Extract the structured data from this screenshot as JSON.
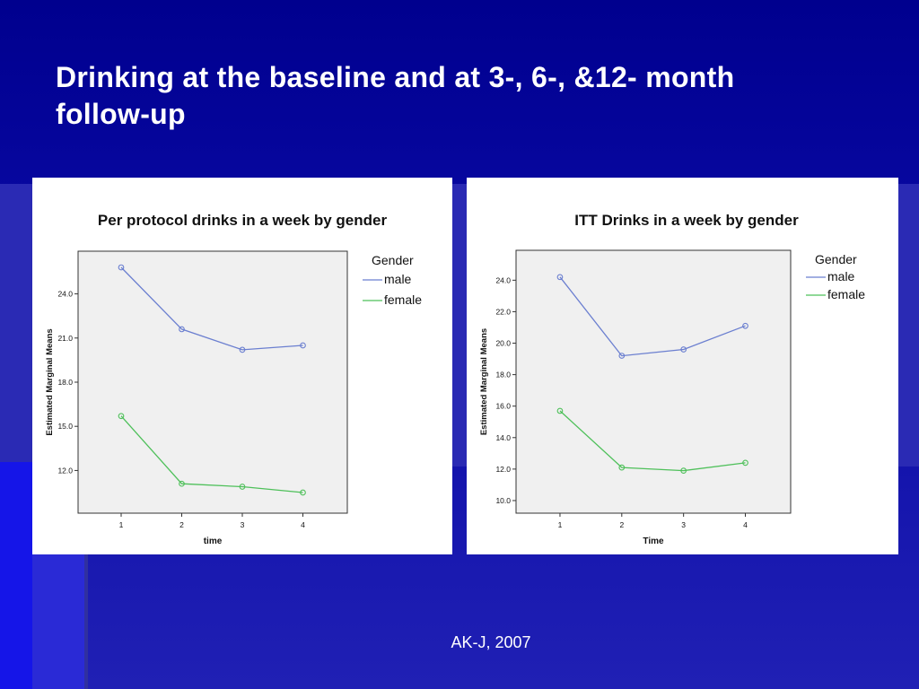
{
  "slide": {
    "title_line1": "Drinking at the baseline and at 3-, 6-, &12- month",
    "title_line2": "follow-up",
    "footer": "AK-J, 2007",
    "colors": {
      "male": "#6b7fd0",
      "female": "#4ec05a",
      "plot_bg": "#f0f0f0"
    }
  },
  "chart_data": [
    {
      "type": "line",
      "title": "Per protocol drinks in a week by gender",
      "xlabel": "time",
      "ylabel": "Estimated Marginal Means",
      "categories": [
        "1",
        "2",
        "3",
        "4"
      ],
      "yticks": [
        12.0,
        15.0,
        18.0,
        21.0,
        24.0
      ],
      "ylim": [
        9.1,
        26.9
      ],
      "legend_title": "Gender",
      "legend_position": "right",
      "series": [
        {
          "name": "male",
          "values": [
            25.8,
            21.6,
            20.2,
            20.5
          ]
        },
        {
          "name": "female",
          "values": [
            15.7,
            11.1,
            10.9,
            10.5
          ]
        }
      ]
    },
    {
      "type": "line",
      "title": "ITT Drinks in a week by gender",
      "xlabel": "Time",
      "ylabel": "Estimated Marginal Means",
      "categories": [
        "1",
        "2",
        "3",
        "4"
      ],
      "yticks": [
        10.0,
        12.0,
        14.0,
        16.0,
        18.0,
        20.0,
        22.0,
        24.0
      ],
      "ylim": [
        9.2,
        25.9
      ],
      "legend_title": "Gender",
      "legend_position": "right",
      "series": [
        {
          "name": "male",
          "values": [
            24.2,
            19.2,
            19.6,
            21.1
          ]
        },
        {
          "name": "female",
          "values": [
            15.7,
            12.1,
            11.9,
            12.4
          ]
        }
      ]
    }
  ]
}
